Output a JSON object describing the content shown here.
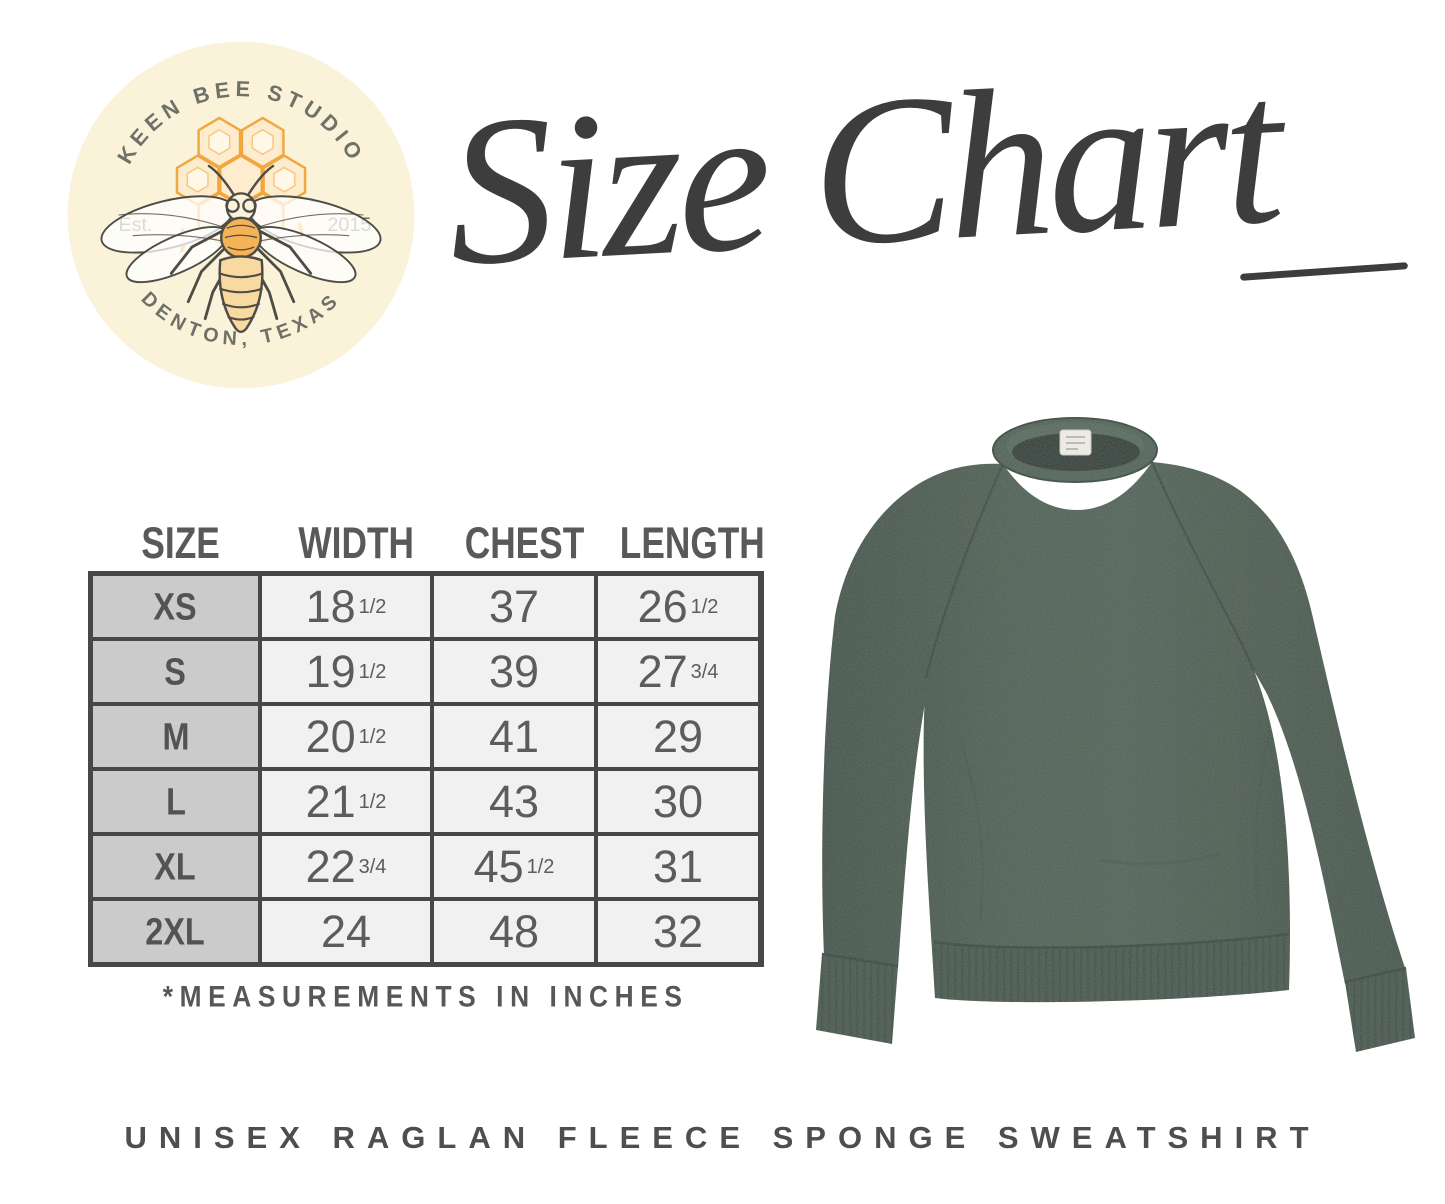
{
  "logo": {
    "arc_top": "KEEN BEE STUDIO",
    "est": "Est.",
    "year": "2015",
    "arc_bottom": "DENTON, TEXAS"
  },
  "title": {
    "text": "Size Chart"
  },
  "table": {
    "headers": [
      "SIZE",
      "WIDTH",
      "CHEST",
      "LENGTH"
    ],
    "rows": [
      {
        "size": "XS",
        "cells": [
          {
            "v": "18",
            "f": "1/2"
          },
          {
            "v": "37",
            "f": ""
          },
          {
            "v": "26",
            "f": "1/2"
          }
        ]
      },
      {
        "size": "S",
        "cells": [
          {
            "v": "19",
            "f": "1/2"
          },
          {
            "v": "39",
            "f": ""
          },
          {
            "v": "27",
            "f": "3/4"
          }
        ]
      },
      {
        "size": "M",
        "cells": [
          {
            "v": "20",
            "f": "1/2"
          },
          {
            "v": "41",
            "f": ""
          },
          {
            "v": "29",
            "f": ""
          }
        ]
      },
      {
        "size": "L",
        "cells": [
          {
            "v": "21",
            "f": "1/2"
          },
          {
            "v": "43",
            "f": ""
          },
          {
            "v": "30",
            "f": ""
          }
        ]
      },
      {
        "size": "XL",
        "cells": [
          {
            "v": "22",
            "f": "3/4"
          },
          {
            "v": "45",
            "f": "1/2"
          },
          {
            "v": "31",
            "f": ""
          }
        ]
      },
      {
        "size": "2XL",
        "cells": [
          {
            "v": "24",
            "f": ""
          },
          {
            "v": "48",
            "f": ""
          },
          {
            "v": "32",
            "f": ""
          }
        ]
      }
    ],
    "footnote": "*MEASUREMENTS IN INCHES"
  },
  "caption": "UNISEX RAGLAN FLEECE SPONGE SWEATSHIRT",
  "colors": {
    "logo_bg": "#faf3da",
    "logo_text": "#6f7068",
    "honey": "#f2a73e",
    "honey_light": "#fdeccd",
    "bee_line": "#4d4c45",
    "script_ink": "#3d3d3d",
    "table_border": "#474747",
    "size_cell_bg": "#cbcbcb",
    "data_cell_bg": "#f1f1f1",
    "table_text": "#58595b",
    "garment_green": "#4b5d51",
    "garment_green_dark": "#3e5045",
    "garment_green_light": "#546759"
  },
  "chart_data": {
    "type": "table",
    "title": "Size Chart",
    "columns": [
      "SIZE",
      "WIDTH",
      "CHEST",
      "LENGTH"
    ],
    "rows": [
      [
        "XS",
        "18 1/2",
        "37",
        "26 1/2"
      ],
      [
        "S",
        "19 1/2",
        "39",
        "27 3/4"
      ],
      [
        "M",
        "20 1/2",
        "41",
        "29"
      ],
      [
        "L",
        "21 1/2",
        "43",
        "30"
      ],
      [
        "XL",
        "22 3/4",
        "45 1/2",
        "31"
      ],
      [
        "2XL",
        "24",
        "48",
        "32"
      ]
    ],
    "units_note": "*MEASUREMENTS IN INCHES",
    "product": "UNISEX RAGLAN FLEECE SPONGE SWEATSHIRT"
  }
}
